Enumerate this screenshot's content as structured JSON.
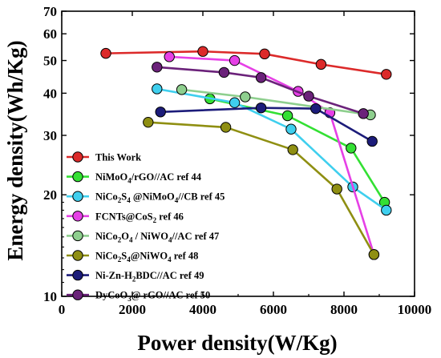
{
  "chart_data": {
    "type": "line",
    "xlabel": "Power density(W/Kg)",
    "ylabel": "Energy density(Wh/Kg)",
    "xlim": [
      0,
      10000
    ],
    "ylim": [
      10,
      70
    ],
    "yscale": "log",
    "x_ticks": [
      0,
      2000,
      4000,
      6000,
      8000,
      10000
    ],
    "x_tick_labels": [
      "0",
      "2000",
      "4000",
      "6000",
      "8000",
      "10000"
    ],
    "y_ticks": [
      10,
      20,
      30,
      40,
      50,
      60,
      70
    ],
    "y_tick_labels": [
      "10",
      "20",
      "30",
      "40",
      "50",
      "60",
      "70"
    ],
    "legend_position": "lower-left",
    "grid": false,
    "series": [
      {
        "name": "This Work",
        "legend": {
          "main": "This Work"
        },
        "color": "#dc2a2a",
        "x": [
          1250,
          4000,
          5750,
          7350,
          9200
        ],
        "y": [
          52.5,
          53.2,
          52.3,
          48.7,
          45.5
        ]
      },
      {
        "name": "NiMoO4/rGO//AC ref 44",
        "legend": {
          "main": "NiMoO",
          "sub1": "4",
          "main2": "/rGO//AC ref 44"
        },
        "color": "#33e033",
        "x": [
          4200,
          6400,
          8200,
          9150
        ],
        "y": [
          38.5,
          34.3,
          27.5,
          19.0
        ]
      },
      {
        "name": "NiCo2S4 @NiMoO4//CB ref 45",
        "legend": {
          "main": "NiCo",
          "sub1": "2",
          "main2": "S",
          "sub2": "4",
          "main3": " @NiMoO",
          "sub3": "4",
          "main4": "//CB ref 45"
        },
        "color": "#3fcfee",
        "x": [
          2700,
          4900,
          6500,
          8250,
          9200
        ],
        "y": [
          41.2,
          37.5,
          31.3,
          21.1,
          18.0
        ]
      },
      {
        "name": "FCNTs@CoS2 ref 46",
        "legend": {
          "main": "FCNTs@CoS",
          "sub1": "2",
          "main2": " ref 46"
        },
        "color": "#e640e6",
        "x": [
          3050,
          4900,
          6700,
          7600,
          8850
        ],
        "y": [
          51.3,
          50.0,
          40.5,
          35.0,
          13.3
        ]
      },
      {
        "name": "NiCo2O4 / NiWO4//AC ref 47",
        "legend": {
          "main": "NiCo",
          "sub1": "2",
          "main2": "O",
          "sub2": "4",
          "main3": " / NiWO",
          "sub3": "4",
          "main4": "//AC ref 47"
        },
        "color": "#8ecf8e",
        "x": [
          3400,
          5200,
          8750
        ],
        "y": [
          41.0,
          39.0,
          34.5
        ]
      },
      {
        "name": "NiCo2S4@NiWO4 ref 48",
        "legend": {
          "main": "NiCo",
          "sub1": "2",
          "main2": "S",
          "sub2": "4",
          "main3": "@NiWO",
          "sub3": "4",
          "main4": " ref 48"
        },
        "color": "#8f8f12",
        "x": [
          2450,
          4650,
          6550,
          7800,
          8850
        ],
        "y": [
          32.8,
          31.7,
          27.2,
          20.8,
          13.3
        ]
      },
      {
        "name": "Ni-Zn-H2BDC//AC ref 49",
        "legend": {
          "main": "Ni-Zn-H",
          "sub1": "2",
          "main2": "BDC//AC ref 49"
        },
        "color": "#1c1c7a",
        "x": [
          2800,
          5650,
          7200,
          8800
        ],
        "y": [
          35.2,
          36.2,
          36.0,
          28.8
        ]
      },
      {
        "name": "DyCoO3@ rGO//AC ref 50",
        "legend": {
          "main": "DyCoO",
          "sub1": "3",
          "main2": "@ rGO//AC ref 50"
        },
        "color": "#6b227a",
        "x": [
          2700,
          4600,
          5650,
          7000,
          8550
        ],
        "y": [
          47.8,
          46.1,
          44.5,
          39.2,
          34.8
        ]
      }
    ]
  }
}
